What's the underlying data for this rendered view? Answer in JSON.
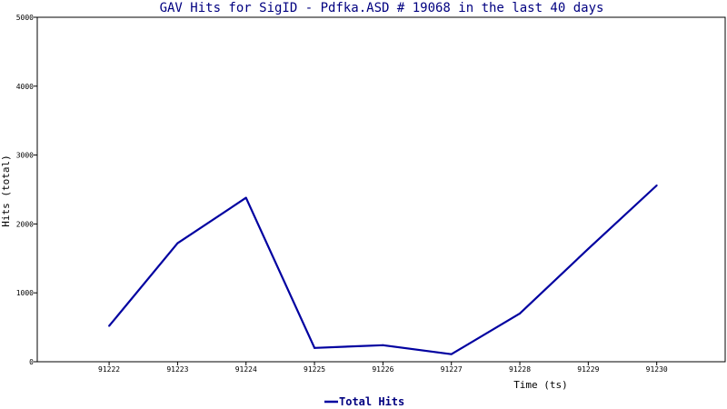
{
  "chart_data": {
    "type": "line",
    "title": "GAV Hits for SigID - Pdfka.ASD # 19068 in the last 40 days",
    "xlabel": "Time (ts)",
    "ylabel": "Hits (total)",
    "x": [
      91222,
      91223,
      91224,
      91225,
      91226,
      91227,
      91228,
      91229,
      91230
    ],
    "xlim": [
      91220.95,
      91231.0
    ],
    "ylim": [
      0,
      5000
    ],
    "yticks": [
      0,
      1000,
      2000,
      3000,
      4000,
      5000
    ],
    "series": [
      {
        "name": "Total Hits",
        "values": [
          520,
          1720,
          2380,
          200,
          240,
          110,
          700,
          1640,
          2560
        ],
        "color": "#0000A0"
      }
    ],
    "grid": false,
    "legend": "bottom-center"
  }
}
